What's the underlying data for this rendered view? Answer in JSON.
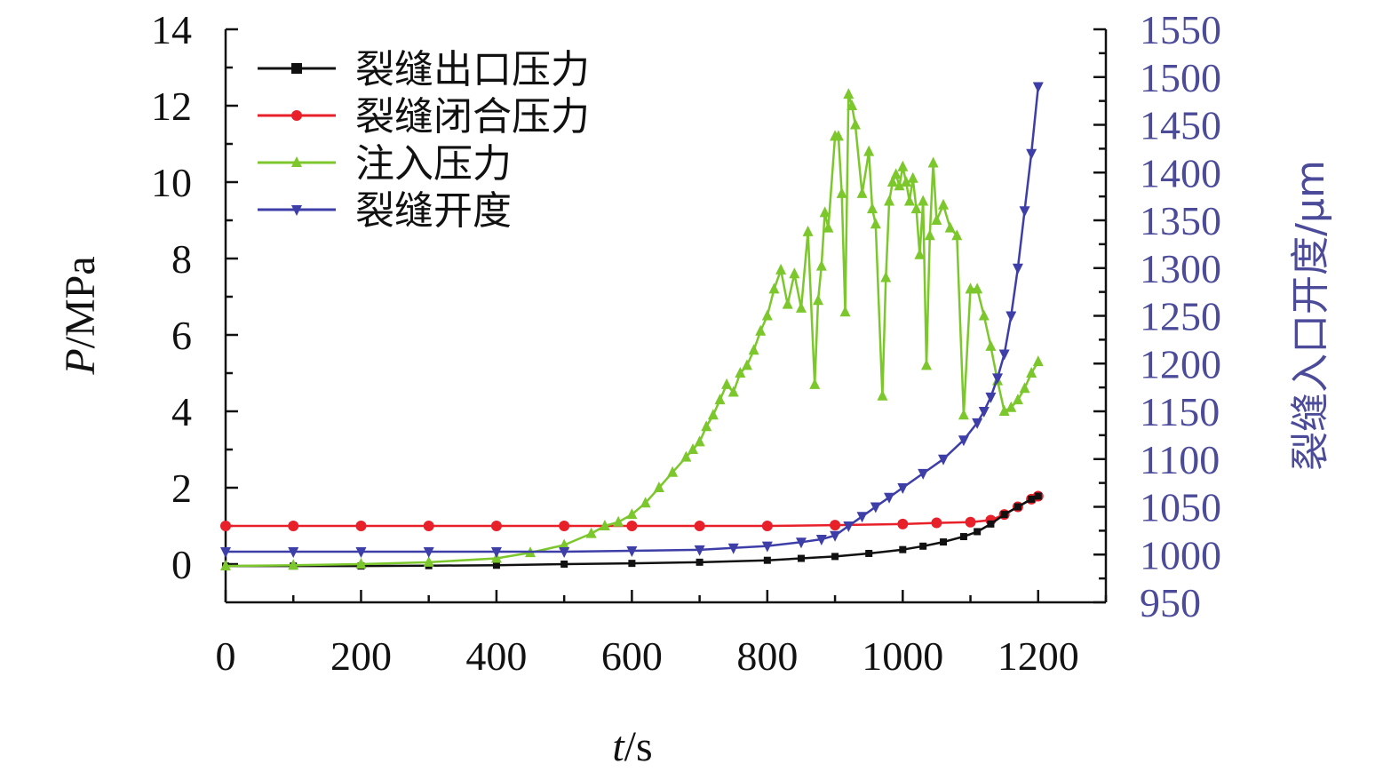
{
  "chart_data": {
    "type": "line",
    "xlabel_italic": "t",
    "xlabel_unit": "/s",
    "ylabel_italic": "P",
    "ylabel_unit": "/MPa",
    "y2label": "裂缝入口开度/μm",
    "xlim": [
      0,
      1300
    ],
    "ylim": [
      -1,
      14
    ],
    "y2lim": [
      950,
      1550
    ],
    "xticks": [
      0,
      200,
      400,
      600,
      800,
      1000,
      1200
    ],
    "yticks": [
      0,
      2,
      4,
      6,
      8,
      10,
      12,
      14
    ],
    "y2ticks": [
      950,
      1000,
      1050,
      1100,
      1150,
      1200,
      1250,
      1300,
      1350,
      1400,
      1450,
      1500,
      1550
    ],
    "legend_position": "top-left",
    "grid": false,
    "series": [
      {
        "name": "裂缝出口压力",
        "color": "#111111",
        "marker": "square",
        "axis": "left",
        "x": [
          0,
          100,
          200,
          300,
          400,
          500,
          600,
          700,
          800,
          850,
          900,
          950,
          1000,
          1030,
          1060,
          1090,
          1110,
          1130,
          1150,
          1170,
          1190,
          1200
        ],
        "y": [
          -0.05,
          -0.05,
          -0.05,
          -0.04,
          -0.03,
          0.0,
          0.02,
          0.05,
          0.1,
          0.15,
          0.2,
          0.28,
          0.38,
          0.47,
          0.58,
          0.72,
          0.85,
          1.05,
          1.3,
          1.5,
          1.7,
          1.78
        ]
      },
      {
        "name": "裂缝闭合压力",
        "color": "#e8202a",
        "marker": "circle",
        "axis": "left",
        "x": [
          0,
          100,
          200,
          300,
          400,
          500,
          600,
          700,
          800,
          900,
          1000,
          1050,
          1100,
          1130,
          1150,
          1170,
          1190,
          1200
        ],
        "y": [
          1.0,
          1.0,
          1.0,
          1.0,
          1.0,
          1.0,
          1.0,
          1.0,
          1.0,
          1.02,
          1.05,
          1.08,
          1.1,
          1.15,
          1.3,
          1.5,
          1.7,
          1.78
        ]
      },
      {
        "name": "注入压力",
        "color": "#7cc72c",
        "marker": "triangle-up",
        "axis": "left",
        "x": [
          0,
          100,
          200,
          300,
          400,
          450,
          500,
          540,
          560,
          580,
          600,
          620,
          640,
          660,
          680,
          690,
          700,
          710,
          720,
          730,
          740,
          750,
          760,
          770,
          780,
          790,
          800,
          810,
          820,
          830,
          840,
          850,
          860,
          870,
          875,
          880,
          885,
          890,
          900,
          905,
          910,
          915,
          920,
          925,
          930,
          940,
          950,
          955,
          960,
          970,
          975,
          980,
          985,
          990,
          995,
          1000,
          1005,
          1010,
          1015,
          1020,
          1025,
          1030,
          1035,
          1040,
          1045,
          1050,
          1060,
          1070,
          1080,
          1090,
          1100,
          1110,
          1120,
          1130,
          1140,
          1150,
          1160,
          1170,
          1180,
          1190,
          1200
        ],
        "y": [
          -0.05,
          -0.03,
          0.0,
          0.05,
          0.15,
          0.3,
          0.5,
          0.8,
          1.0,
          1.1,
          1.3,
          1.6,
          2.0,
          2.4,
          2.8,
          3.0,
          3.2,
          3.6,
          3.9,
          4.3,
          4.7,
          4.5,
          5.0,
          5.2,
          5.6,
          6.1,
          6.5,
          7.2,
          7.7,
          6.8,
          7.6,
          6.7,
          8.7,
          4.7,
          6.9,
          7.8,
          9.2,
          8.8,
          11.2,
          11.2,
          9.7,
          6.6,
          12.3,
          12.0,
          11.5,
          9.7,
          10.8,
          9.3,
          8.9,
          4.4,
          7.5,
          9.5,
          10.0,
          10.2,
          9.9,
          10.4,
          10.0,
          9.5,
          10.1,
          9.3,
          8.1,
          9.5,
          5.2,
          8.6,
          10.5,
          9.0,
          9.4,
          8.8,
          8.6,
          3.9,
          7.2,
          7.2,
          6.5,
          5.7,
          4.8,
          4.0,
          4.1,
          4.3,
          4.6,
          5.0,
          5.3
        ]
      },
      {
        "name": "裂缝开度",
        "color": "#3e3ea8",
        "marker": "triangle-down",
        "axis": "right",
        "x": [
          0,
          100,
          200,
          300,
          400,
          500,
          600,
          700,
          750,
          800,
          850,
          880,
          900,
          920,
          940,
          960,
          980,
          1000,
          1030,
          1060,
          1090,
          1110,
          1120,
          1130,
          1140,
          1150,
          1160,
          1170,
          1180,
          1190,
          1200
        ],
        "y": [
          1003,
          1003,
          1003,
          1003,
          1003,
          1003,
          1004,
          1005,
          1007,
          1009,
          1013,
          1016,
          1020,
          1030,
          1040,
          1050,
          1060,
          1070,
          1085,
          1100,
          1120,
          1138,
          1150,
          1165,
          1185,
          1210,
          1250,
          1300,
          1360,
          1420,
          1490
        ]
      }
    ]
  }
}
